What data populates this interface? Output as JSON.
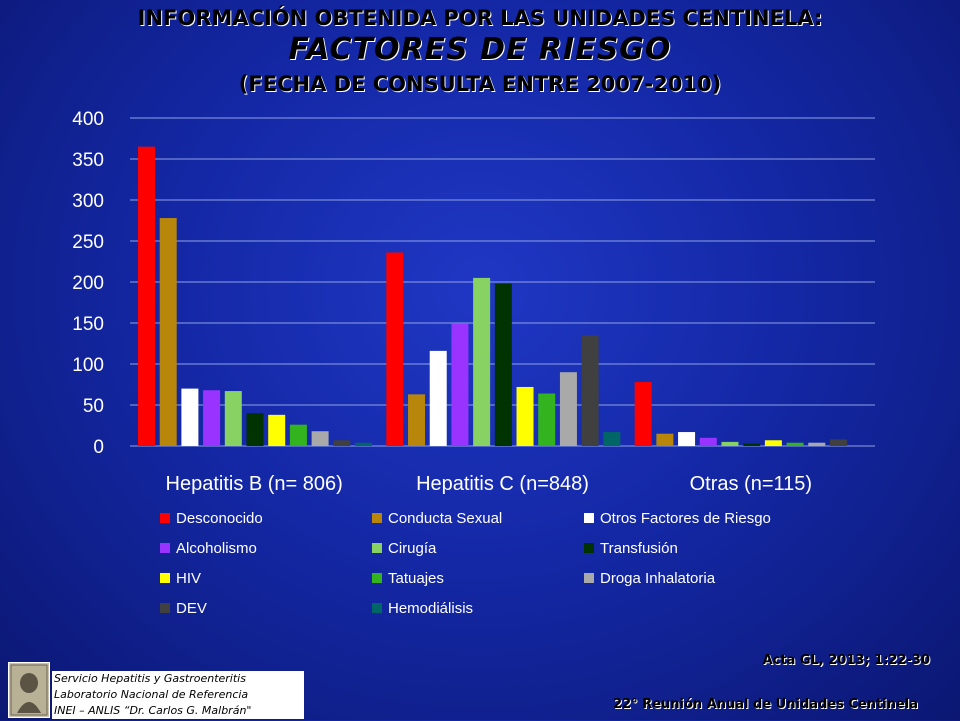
{
  "slide": {
    "title_line1": "INFORMACIÓN OBTENIDA POR LAS UNIDADES CENTINELA:",
    "title_line2": "FACTORES DE  RIESGO",
    "title_line3": "(FECHA DE CONSULTA ENTRE  2007-2010)",
    "citation": "Acta GL, 2013; 1:22-30",
    "meeting": "22° Reunión Anual de Unidades Centinela",
    "institution_lines": [
      "Servicio Hepatitis y Gastroenteritis",
      "Laboratorio Nacional de Referencia",
      "INEI – ANLIS “Dr. Carlos G. Malbrán\""
    ]
  },
  "chart_data": {
    "type": "bar",
    "categories": [
      "Hepatitis B (n= 806)",
      "Hepatitis C (n=848)",
      "Otras (n=115)"
    ],
    "ylim": [
      0,
      400
    ],
    "yticks": [
      0,
      50,
      100,
      150,
      200,
      250,
      300,
      350,
      400
    ],
    "grid": true,
    "legend_position": "bottom",
    "series": [
      {
        "name": "Desconocido",
        "color": "#ff0000",
        "values": [
          365,
          236,
          78
        ]
      },
      {
        "name": "Conducta Sexual",
        "color": "#b8860b",
        "values": [
          278,
          63,
          15
        ]
      },
      {
        "name": "Otros Factores de Riesgo",
        "color": "#ffffff",
        "values": [
          70,
          116,
          17
        ]
      },
      {
        "name": "Alcoholismo",
        "color": "#9933ff",
        "values": [
          68,
          149,
          10
        ]
      },
      {
        "name": "Cirugía",
        "color": "#88d264",
        "values": [
          67,
          205,
          5
        ]
      },
      {
        "name": "Transfusión",
        "color": "#003300",
        "values": [
          40,
          198,
          3
        ]
      },
      {
        "name": "HIV",
        "color": "#ffff00",
        "values": [
          38,
          72,
          7
        ]
      },
      {
        "name": "Tatuajes",
        "color": "#33b41e",
        "values": [
          26,
          64,
          4
        ]
      },
      {
        "name": "Droga Inhalatoria",
        "color": "#a9a9a9",
        "values": [
          18,
          90,
          4
        ]
      },
      {
        "name": "DEV",
        "color": "#404040",
        "values": [
          7,
          135,
          8
        ]
      },
      {
        "name": "Hemodiálisis",
        "color": "#006666",
        "values": [
          4,
          17,
          0
        ]
      }
    ]
  }
}
